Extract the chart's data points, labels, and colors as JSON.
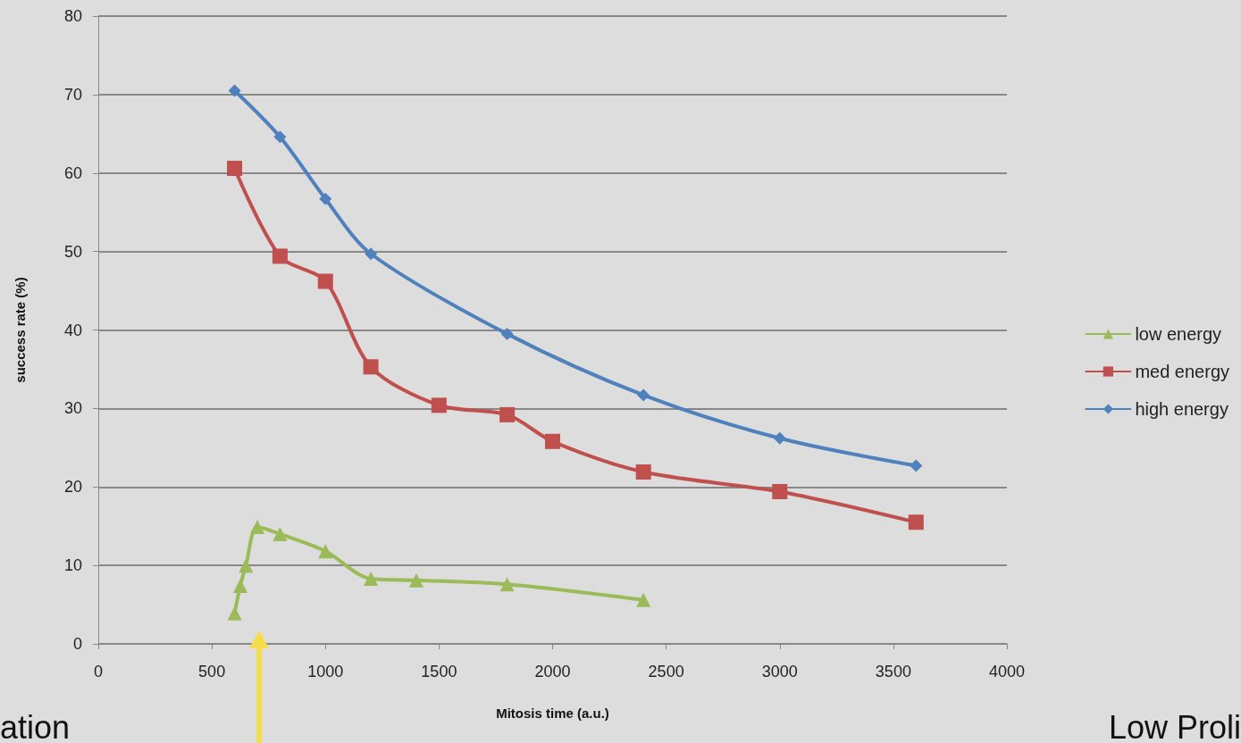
{
  "chart_data": {
    "type": "line",
    "xlabel": "Mitosis time (a.u.)",
    "ylabel": "success rate (%)",
    "xlim": [
      0,
      4000
    ],
    "xticks": [
      0,
      500,
      1000,
      1500,
      2000,
      2500,
      3000,
      3500,
      4000
    ],
    "ylim": [
      0,
      80
    ],
    "yticks": [
      0,
      10,
      20,
      30,
      40,
      50,
      60,
      70,
      80
    ],
    "grid": "y",
    "legend": "right",
    "line_style": "solid",
    "series": [
      {
        "name": "low energy",
        "color": "#9bbb59",
        "marker": "triangle",
        "x": [
          600,
          625,
          650,
          700,
          800,
          1000,
          1200,
          1400,
          1800,
          2400
        ],
        "values": [
          3.9,
          7.4,
          10.0,
          14.9,
          14.0,
          11.8,
          8.3,
          8.1,
          7.6,
          5.6
        ]
      },
      {
        "name": "med energy",
        "color": "#c0504d",
        "marker": "square",
        "x": [
          600,
          800,
          1000,
          1200,
          1500,
          1800,
          2000,
          2400,
          3000,
          3600
        ],
        "values": [
          60.6,
          49.4,
          46.2,
          35.3,
          30.4,
          29.2,
          25.8,
          21.9,
          19.4,
          15.5
        ]
      },
      {
        "name": "high energy",
        "color": "#4f81bd",
        "marker": "diamond",
        "x": [
          600,
          800,
          1000,
          1200,
          1800,
          2400,
          3000,
          3600
        ],
        "values": [
          70.5,
          64.6,
          56.7,
          49.7,
          39.5,
          31.7,
          26.2,
          22.7
        ]
      }
    ],
    "annotations": [
      "ation",
      "Low Proli"
    ]
  }
}
